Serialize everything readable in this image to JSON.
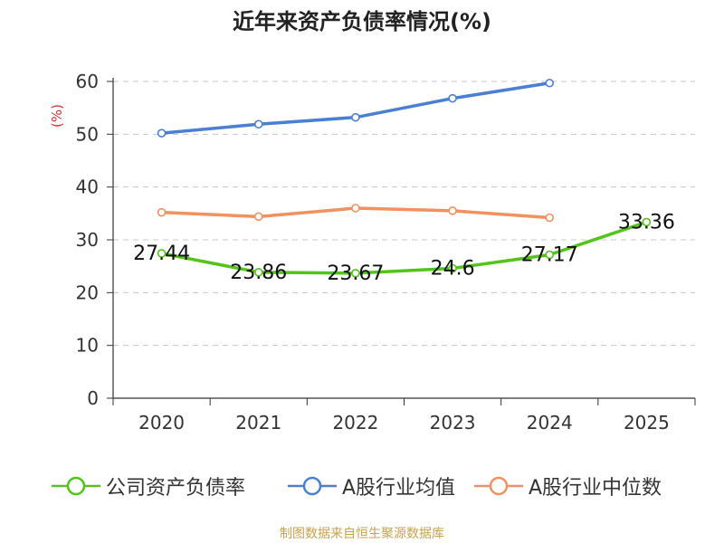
{
  "chart_data": {
    "type": "line",
    "title": "近年来资产负债率情况(%)",
    "ylabel": "(%)",
    "categories": [
      "2020",
      "2021",
      "2022",
      "2023",
      "2024",
      "2025"
    ],
    "ylim": [
      0,
      60
    ],
    "yticks": [
      0,
      10,
      20,
      30,
      40,
      50,
      60
    ],
    "grid": true,
    "legend_position": "bottom",
    "series": [
      {
        "name": "公司资产负债率",
        "color": "#52c41a",
        "values": [
          27.44,
          23.86,
          23.67,
          24.6,
          27.17,
          33.36
        ],
        "data_labels": [
          "27.44",
          "23.86",
          "23.67",
          "24.6",
          "27.17",
          "33.36"
        ]
      },
      {
        "name": "A股行业均值",
        "color": "#4a7fd4",
        "values": [
          50.2,
          51.9,
          53.2,
          56.8,
          59.7,
          null
        ]
      },
      {
        "name": "A股行业中位数",
        "color": "#f39060",
        "values": [
          35.2,
          34.4,
          36.0,
          35.5,
          34.2,
          null
        ]
      }
    ]
  },
  "source": "制图数据来自恒生聚源数据库"
}
